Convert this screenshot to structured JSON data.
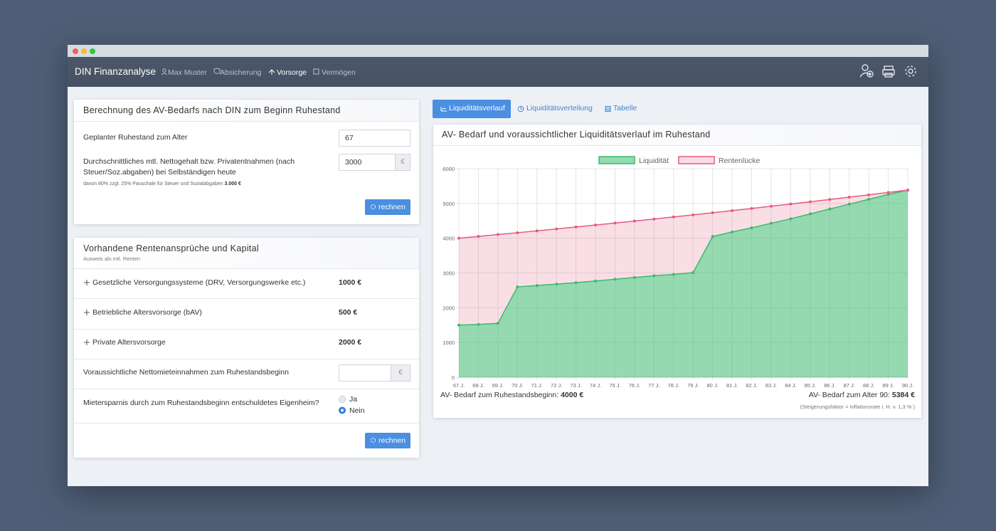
{
  "nav": {
    "brand": "DIN Finanzanalyse",
    "items": [
      "Max Muster",
      "Absicherung",
      "Vorsorge",
      "Vermögen"
    ]
  },
  "bedarf_card": {
    "title": "Berechnung des AV-Bedarfs nach DIN zum Beginn Ruhestand",
    "retirement_age_label": "Geplanter Ruhestand zum Alter",
    "retirement_age": "67",
    "income_label": "Durchschnittliches mtl. Nettogehalt bzw. Privatentnahmen (nach Steuer/Soz.abgaben) bei Selbständigen heute",
    "income": "3000",
    "currency": "€",
    "note": "davon 80% zzgl. 25% Pauschale für Steuer und Sozialabgaben",
    "note_amount": "3.000 €",
    "button": "rechnen"
  },
  "renten_card": {
    "title": "Vorhandene Rentenansprüche und Kapital",
    "subtitle": "Ausweis als mtl. Renten",
    "rows": [
      [
        "Gesetzliche Versorgungssysteme (DRV, Versorgungswerke etc.)",
        "1000 €"
      ],
      [
        "Betriebliche Altersvorsorge (bAV)",
        "500 €"
      ],
      [
        "Private Altersvorsorge",
        "2000 €"
      ]
    ],
    "rent_label": "Voraussichtliche Nettomieteinnahmen zum Ruhestandsbeginn",
    "currency": "€",
    "home_label": "Mietersparnis durch zum Ruhestandsbeginn entschuldetes Eigenheim?",
    "options": [
      "Ja",
      "Nein"
    ],
    "button": "rechnen"
  },
  "tabs": [
    "Liquiditätsverlauf",
    "Liquiditätsverteilung",
    "Tabelle"
  ],
  "chart_data": {
    "type": "line",
    "title": "AV- Bedarf und voraussichtlicher Liquiditätsverlauf im Ruhestand",
    "categories": [
      "67 J.",
      "68 J.",
      "69 J.",
      "70 J.",
      "71 J.",
      "72 J.",
      "73 J.",
      "74 J.",
      "75 J.",
      "76 J.",
      "77 J.",
      "78 J.",
      "79 J.",
      "80 J.",
      "81 J.",
      "82 J.",
      "83 J.",
      "84 J.",
      "85 J.",
      "86 J.",
      "87 J.",
      "88 J.",
      "89 J.",
      "90 J."
    ],
    "series": [
      {
        "name": "Liquidität",
        "color": "#3dba6f",
        "values": [
          1500,
          1520,
          1550,
          2600,
          2640,
          2680,
          2720,
          2770,
          2820,
          2870,
          2920,
          2960,
          3010,
          4050,
          4180,
          4300,
          4430,
          4560,
          4700,
          4840,
          4980,
          5120,
          5260,
          5384
        ]
      },
      {
        "name": "Rentenlücke",
        "color": "#e85a7d",
        "values": [
          4000,
          4052,
          4105,
          4158,
          4212,
          4267,
          4323,
          4379,
          4436,
          4494,
          4552,
          4612,
          4672,
          4732,
          4794,
          4856,
          4919,
          4983,
          5048,
          5114,
          5181,
          5248,
          5316,
          5384
        ]
      }
    ],
    "ylim": [
      0,
      6000
    ],
    "yticks": [
      0,
      1000,
      2000,
      3000,
      4000,
      5000,
      6000
    ],
    "grid": true,
    "legend": "top"
  },
  "chart_footer": {
    "start_label": "AV- Bedarf zum Ruhestandsbeginn:",
    "start_value": "4000 €",
    "end_label": "AV- Bedarf zum Alter 90:",
    "end_value": "5384 €",
    "note": "(Steigerungsfaktor = Inflationsrate i. H. v. 1,3 % )"
  }
}
